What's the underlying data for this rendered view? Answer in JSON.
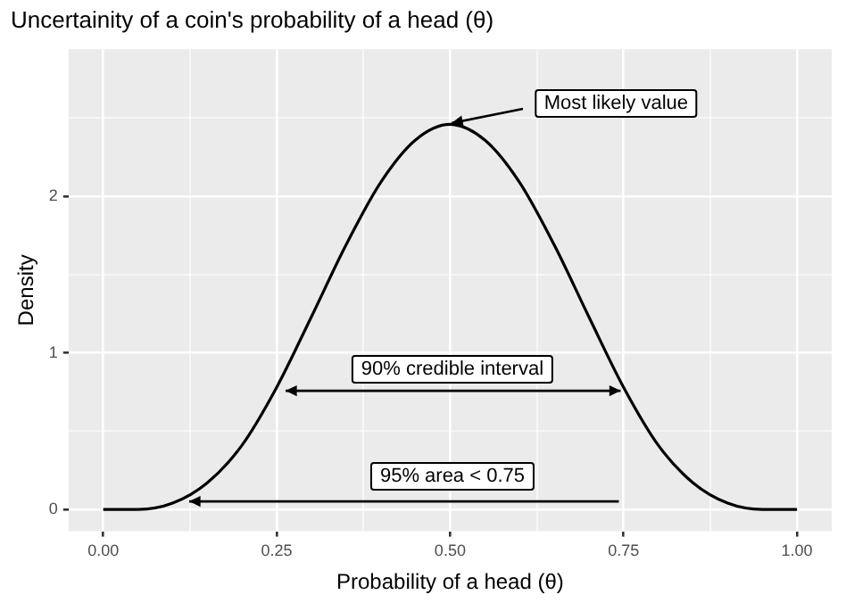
{
  "chart_data": {
    "type": "line",
    "title": "Uncertainity of a coin's probability of a head (θ)",
    "xlabel": "Probability of a head (θ)",
    "ylabel": "Density",
    "series": [
      {
        "color": "#000000",
        "x": [
          0,
          0.05,
          0.1,
          0.15,
          0.2,
          0.25,
          0.3,
          0.35,
          0.4,
          0.45,
          0.5,
          0.55,
          0.6,
          0.65,
          0.7,
          0.75,
          0.8,
          0.85,
          0.9,
          0.95,
          1
        ],
        "values": [
          0,
          0,
          0.04,
          0.17,
          0.41,
          0.78,
          1.23,
          1.69,
          2.09,
          2.36,
          2.46,
          2.36,
          2.09,
          1.69,
          1.23,
          0.78,
          0.41,
          0.17,
          0.04,
          0,
          0
        ]
      }
    ],
    "annotations": [
      {
        "text": "Most likely value",
        "x": 0.5,
        "y": 2.46
      },
      "90% credible interval",
      "95% area < 0.75"
    ],
    "xlim": [
      -0.05,
      1.05
    ],
    "xticks": [
      {
        "value": 0,
        "label": "0.00"
      },
      {
        "value": 0.125,
        "label": null
      },
      {
        "value": 0.25,
        "label": "0.25"
      },
      {
        "value": 0.375,
        "label": null
      },
      {
        "value": 0.5,
        "label": "0.50"
      },
      {
        "value": 0.625,
        "label": null
      },
      {
        "value": 0.75,
        "label": "0.75"
      },
      {
        "value": 0.875,
        "label": null
      },
      {
        "value": 1,
        "label": "1.00"
      }
    ],
    "ylim": [
      -0.14,
      2.94
    ],
    "yticks": [
      0,
      {
        "value": 0.5,
        "label": null
      },
      1,
      {
        "value": 1.5,
        "label": null
      },
      2,
      {
        "value": 2.5,
        "label": null
      }
    ],
    "grid": true,
    "legend": false,
    "marker": "none",
    "line_style": "solid"
  }
}
